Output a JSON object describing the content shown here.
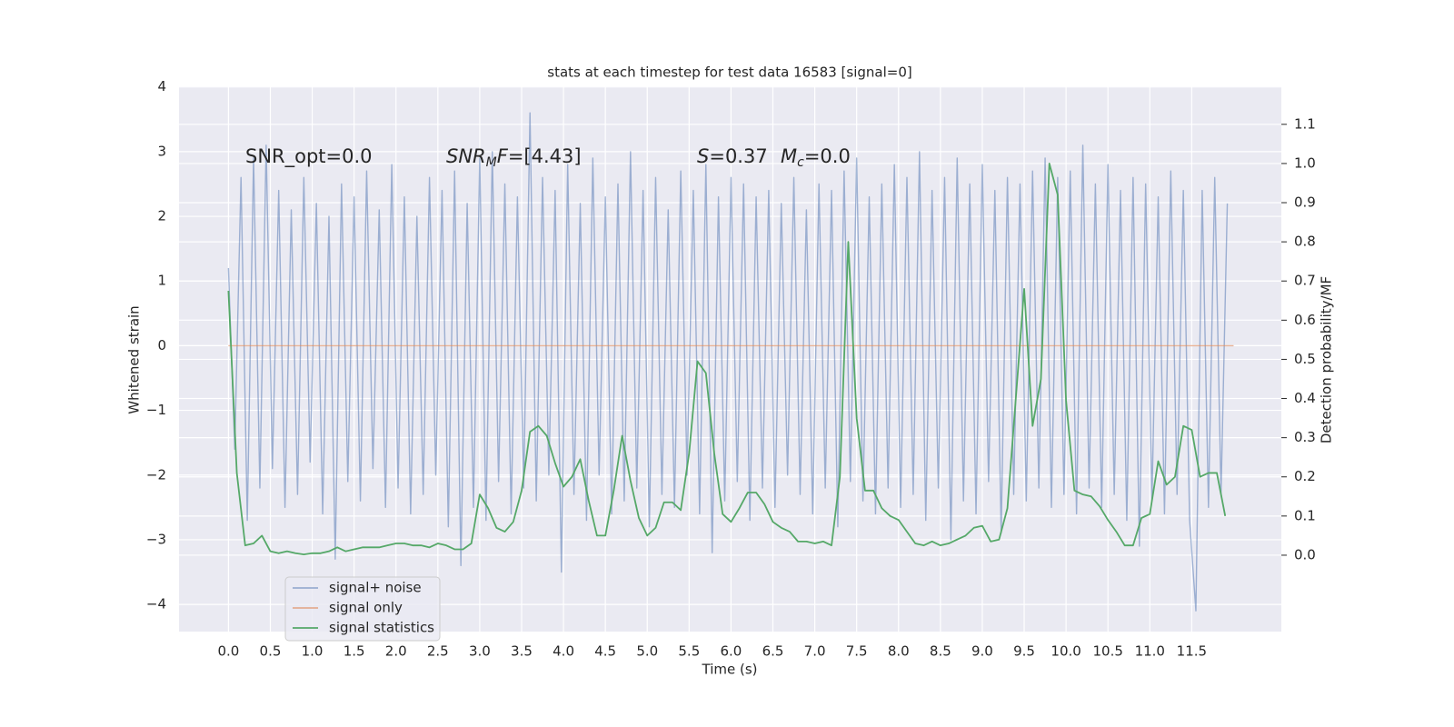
{
  "chart_data": {
    "type": "line",
    "title": "stats at each timestep for test data 16583 [signal=0]",
    "xlabel": "Time (s)",
    "ylabel": "Whitened strain",
    "y2label": "Detection probability/MF",
    "grid": true,
    "legend_loc": "lower left",
    "xlim": [
      -0.59,
      12.57
    ],
    "ylim": [
      -4.42,
      4.01
    ],
    "y2lim": [
      -0.195,
      1.197
    ],
    "xticks": [
      {
        "value": 0,
        "label": "0.0"
      },
      {
        "value": 0.5,
        "label": "0.5"
      },
      {
        "value": 1,
        "label": "1.0"
      },
      {
        "value": 1.5,
        "label": "1.5"
      },
      {
        "value": 2,
        "label": "2.0"
      },
      {
        "value": 2.5,
        "label": "2.5"
      },
      {
        "value": 3,
        "label": "3.0"
      },
      {
        "value": 3.5,
        "label": "3.5"
      },
      {
        "value": 4,
        "label": "4.0"
      },
      {
        "value": 4.5,
        "label": "4.5"
      },
      {
        "value": 5,
        "label": "5.0"
      },
      {
        "value": 5.5,
        "label": "5.5"
      },
      {
        "value": 6,
        "label": "6.0"
      },
      {
        "value": 6.5,
        "label": "6.5"
      },
      {
        "value": 7,
        "label": "7.0"
      },
      {
        "value": 7.5,
        "label": "7.5"
      },
      {
        "value": 8,
        "label": "8.0"
      },
      {
        "value": 8.5,
        "label": "8.5"
      },
      {
        "value": 9,
        "label": "9.0"
      },
      {
        "value": 9.5,
        "label": "9.5"
      },
      {
        "value": 10,
        "label": "10.0"
      },
      {
        "value": 10.5,
        "label": "10.5"
      },
      {
        "value": 11,
        "label": "11.0"
      },
      {
        "value": 11.5,
        "label": "11.5"
      }
    ],
    "yticks": [
      {
        "value": -4,
        "label": "−4"
      },
      {
        "value": -3,
        "label": "−3"
      },
      {
        "value": -2,
        "label": "−2"
      },
      {
        "value": -1,
        "label": "−1"
      },
      0,
      1,
      2,
      3,
      4
    ],
    "y2ticks": [
      {
        "value": 0,
        "label": "0.0"
      },
      {
        "value": 0.1,
        "label": "0.1"
      },
      {
        "value": 0.2,
        "label": "0.2"
      },
      {
        "value": 0.3,
        "label": "0.3"
      },
      {
        "value": 0.4,
        "label": "0.4"
      },
      {
        "value": 0.5,
        "label": "0.5"
      },
      {
        "value": 0.6,
        "label": "0.6"
      },
      {
        "value": 0.7,
        "label": "0.7"
      },
      {
        "value": 0.8,
        "label": "0.8"
      },
      {
        "value": 0.9,
        "label": "0.9"
      },
      {
        "value": 1,
        "label": "1.0"
      },
      {
        "value": 1.1,
        "label": "1.1"
      }
    ],
    "annotations": [
      {
        "parts": [
          {
            "text": "SNR_opt=0.0"
          }
        ]
      },
      {
        "parts": [
          {
            "text": "SNR",
            "italic": true
          },
          {
            "text": "M",
            "italic": true,
            "sub": true
          },
          {
            "text": "F",
            "italic": true
          },
          {
            "text": "=[4.43]"
          }
        ]
      },
      {
        "parts": [
          {
            "text": "S",
            "italic": true
          },
          {
            "text": "=0.37"
          }
        ]
      },
      {
        "parts": [
          {
            "text": "M",
            "italic": true
          },
          {
            "text": "c",
            "italic": true,
            "sub": true
          },
          {
            "text": "=0.0"
          }
        ]
      }
    ],
    "series": [
      {
        "name": "signal+ noise",
        "color": "#4c72b0",
        "alpha": 0.5,
        "x": [
          0,
          0.075,
          0.15,
          0.225,
          0.3,
          0.375,
          0.45,
          0.525,
          0.6,
          0.675,
          0.75,
          0.825,
          0.9,
          0.975,
          1.05,
          1.125,
          1.2,
          1.275,
          1.35,
          1.425,
          1.5,
          1.575,
          1.65,
          1.725,
          1.8,
          1.875,
          1.95,
          2.025,
          2.1,
          2.175,
          2.25,
          2.325,
          2.4,
          2.475,
          2.55,
          2.625,
          2.7,
          2.775,
          2.85,
          2.925,
          3,
          3.075,
          3.15,
          3.225,
          3.3,
          3.375,
          3.45,
          3.525,
          3.6,
          3.675,
          3.75,
          3.825,
          3.9,
          3.975,
          4.05,
          4.125,
          4.2,
          4.275,
          4.35,
          4.425,
          4.5,
          4.575,
          4.65,
          4.725,
          4.8,
          4.875,
          4.95,
          5.025,
          5.1,
          5.175,
          5.25,
          5.325,
          5.4,
          5.475,
          5.55,
          5.625,
          5.7,
          5.775,
          5.85,
          5.925,
          6,
          6.075,
          6.15,
          6.225,
          6.3,
          6.375,
          6.45,
          6.525,
          6.6,
          6.675,
          6.75,
          6.825,
          6.9,
          6.975,
          7.05,
          7.125,
          7.2,
          7.275,
          7.35,
          7.425,
          7.5,
          7.575,
          7.65,
          7.725,
          7.8,
          7.875,
          7.95,
          8.025,
          8.1,
          8.175,
          8.25,
          8.325,
          8.4,
          8.475,
          8.55,
          8.625,
          8.7,
          8.775,
          8.85,
          8.925,
          9,
          9.075,
          9.15,
          9.225,
          9.3,
          9.375,
          9.45,
          9.525,
          9.6,
          9.675,
          9.75,
          9.825,
          9.9,
          9.975,
          10.05,
          10.125,
          10.2,
          10.275,
          10.35,
          10.425,
          10.5,
          10.575,
          10.65,
          10.725,
          10.8,
          10.875,
          10.95,
          11.025,
          11.1,
          11.175,
          11.25,
          11.325,
          11.4,
          11.475,
          11.55,
          11.625,
          11.7,
          11.775,
          11.85,
          11.925
        ],
        "values": [
          1.2,
          -1.6,
          2.6,
          -2.7,
          2.9,
          -2.2,
          3.1,
          -1.9,
          2.4,
          -2.5,
          2.1,
          -2.3,
          2.6,
          -1.8,
          2.2,
          -2.6,
          2.0,
          -3.3,
          2.5,
          -2.1,
          2.3,
          -2.4,
          2.7,
          -1.9,
          2.1,
          -2.5,
          2.8,
          -2.2,
          2.3,
          -2.6,
          2.0,
          -2.3,
          2.6,
          -2.0,
          2.4,
          -2.8,
          2.7,
          -3.4,
          2.2,
          -2.5,
          2.9,
          -2.7,
          3.0,
          -2.1,
          2.5,
          -2.6,
          2.3,
          -2.2,
          3.6,
          -2.4,
          2.6,
          -2.0,
          2.4,
          -3.5,
          2.8,
          -2.3,
          2.2,
          -2.7,
          2.9,
          -2.0,
          2.3,
          -2.6,
          2.5,
          -2.4,
          3.0,
          -2.2,
          2.4,
          -2.8,
          2.6,
          -2.3,
          2.1,
          -2.5,
          2.7,
          -2.0,
          2.4,
          -2.6,
          2.8,
          -3.2,
          2.3,
          -2.4,
          2.6,
          -2.1,
          2.5,
          -2.7,
          2.3,
          -2.2,
          2.4,
          -2.5,
          2.2,
          -2.0,
          2.6,
          -2.3,
          2.1,
          -2.6,
          2.5,
          -2.2,
          2.4,
          -2.8,
          2.7,
          -2.1,
          2.9,
          -2.4,
          2.3,
          -2.6,
          2.5,
          -2.2,
          2.8,
          -2.5,
          2.6,
          -2.3,
          3.0,
          -2.7,
          2.4,
          -2.2,
          2.6,
          -3.0,
          2.9,
          -2.4,
          2.5,
          -2.6,
          2.8,
          -2.1,
          2.4,
          -2.9,
          2.6,
          -2.3,
          2.5,
          -2.4,
          2.7,
          -2.2,
          2.9,
          -2.5,
          2.6,
          -2.3,
          2.7,
          -2.6,
          3.1,
          -2.2,
          2.5,
          -2.5,
          2.8,
          -2.3,
          2.4,
          -2.7,
          2.6,
          -3.1,
          2.5,
          -2.4,
          2.3,
          -2.6,
          2.7,
          -2.3,
          2.4,
          -2.7,
          -4.1,
          2.4,
          -2.5,
          2.6,
          -2.3,
          2.2
        ]
      },
      {
        "name": "signal only",
        "color": "#dd8452",
        "alpha": 0.6,
        "x": [
          0,
          12
        ],
        "values": [
          0,
          0
        ]
      },
      {
        "name": "signal statistics",
        "color": "#55a868",
        "alpha": 1,
        "axis": "y2",
        "x": [
          0,
          0.1,
          0.2,
          0.3,
          0.4,
          0.5,
          0.6,
          0.7,
          0.8,
          0.9,
          1,
          1.1,
          1.2,
          1.3,
          1.4,
          1.5,
          1.6,
          1.7,
          1.8,
          1.9,
          2,
          2.1,
          2.2,
          2.3,
          2.4,
          2.5,
          2.6,
          2.7,
          2.8,
          2.9,
          3,
          3.1,
          3.2,
          3.3,
          3.4,
          3.5,
          3.6,
          3.7,
          3.8,
          3.9,
          4,
          4.1,
          4.2,
          4.3,
          4.4,
          4.5,
          4.6,
          4.7,
          4.8,
          4.9,
          5,
          5.1,
          5.2,
          5.3,
          5.4,
          5.5,
          5.6,
          5.7,
          5.8,
          5.9,
          6,
          6.1,
          6.2,
          6.3,
          6.4,
          6.5,
          6.6,
          6.7,
          6.8,
          6.9,
          7,
          7.1,
          7.2,
          7.3,
          7.4,
          7.5,
          7.6,
          7.7,
          7.8,
          7.9,
          8,
          8.1,
          8.2,
          8.3,
          8.4,
          8.5,
          8.6,
          8.7,
          8.8,
          8.9,
          9,
          9.1,
          9.2,
          9.3,
          9.4,
          9.5,
          9.6,
          9.7,
          9.8,
          9.9,
          10,
          10.1,
          10.2,
          10.3,
          10.4,
          10.5,
          10.6,
          10.7,
          10.8,
          10.9,
          11,
          11.1,
          11.2,
          11.3,
          11.4,
          11.5,
          11.6,
          11.7,
          11.8,
          11.9
        ],
        "values": [
          0.675,
          0.21,
          0.025,
          0.03,
          0.05,
          0.01,
          0.005,
          0.01,
          0.005,
          0.002,
          0.005,
          0.005,
          0.01,
          0.02,
          0.01,
          0.015,
          0.02,
          0.02,
          0.02,
          0.025,
          0.03,
          0.03,
          0.025,
          0.025,
          0.02,
          0.03,
          0.025,
          0.015,
          0.015,
          0.03,
          0.155,
          0.12,
          0.07,
          0.06,
          0.085,
          0.165,
          0.315,
          0.33,
          0.305,
          0.235,
          0.175,
          0.2,
          0.245,
          0.14,
          0.05,
          0.05,
          0.165,
          0.305,
          0.19,
          0.095,
          0.05,
          0.07,
          0.135,
          0.135,
          0.115,
          0.26,
          0.495,
          0.465,
          0.26,
          0.105,
          0.085,
          0.12,
          0.16,
          0.16,
          0.13,
          0.085,
          0.07,
          0.06,
          0.035,
          0.035,
          0.03,
          0.035,
          0.025,
          0.2,
          0.8,
          0.35,
          0.165,
          0.165,
          0.12,
          0.1,
          0.09,
          0.06,
          0.03,
          0.025,
          0.035,
          0.025,
          0.03,
          0.04,
          0.05,
          0.07,
          0.075,
          0.035,
          0.04,
          0.12,
          0.4,
          0.68,
          0.33,
          0.45,
          1.0,
          0.92,
          0.395,
          0.165,
          0.155,
          0.15,
          0.125,
          0.09,
          0.06,
          0.025,
          0.025,
          0.095,
          0.105,
          0.24,
          0.18,
          0.2,
          0.33,
          0.32,
          0.2,
          0.21,
          0.21,
          0.1
        ]
      }
    ]
  }
}
